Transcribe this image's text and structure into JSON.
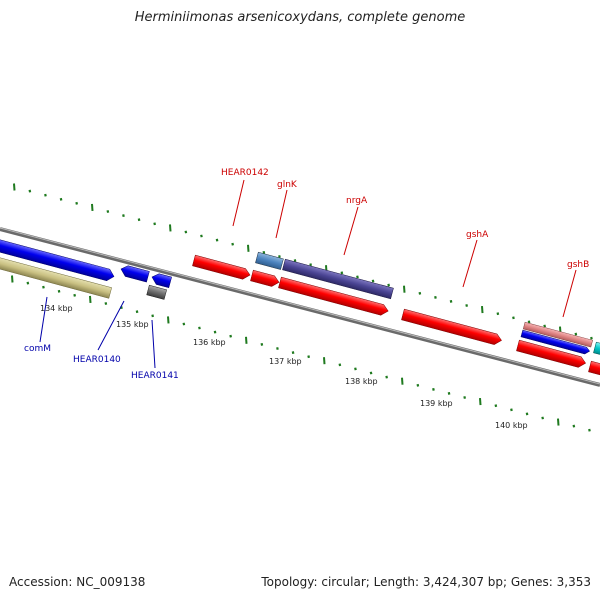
{
  "title": "Herminiimonas arsenicoxydans, complete genome",
  "footer": {
    "accession": "Accession: NC_009138",
    "topology": "Topology: circular; Length: 3,424,307 bp; Genes: 3,353"
  },
  "scale_labels": [
    "134 kbp",
    "135 kbp",
    "136 kbp",
    "137 kbp",
    "138 kbp",
    "139 kbp",
    "140 kbp"
  ],
  "gene_labels_top": [
    "HEAR0142",
    "glnK",
    "nrgA",
    "gshA",
    "gshB"
  ],
  "gene_labels_bottom": [
    "comM",
    "HEAR0140",
    "HEAR0141"
  ],
  "colors": {
    "forward": "#ff0000",
    "reverse": "#0000ee",
    "tick": "#1f7a1f",
    "backbone": "#888888",
    "label_top": "#cc0000",
    "label_bottom": "#0000aa"
  }
}
